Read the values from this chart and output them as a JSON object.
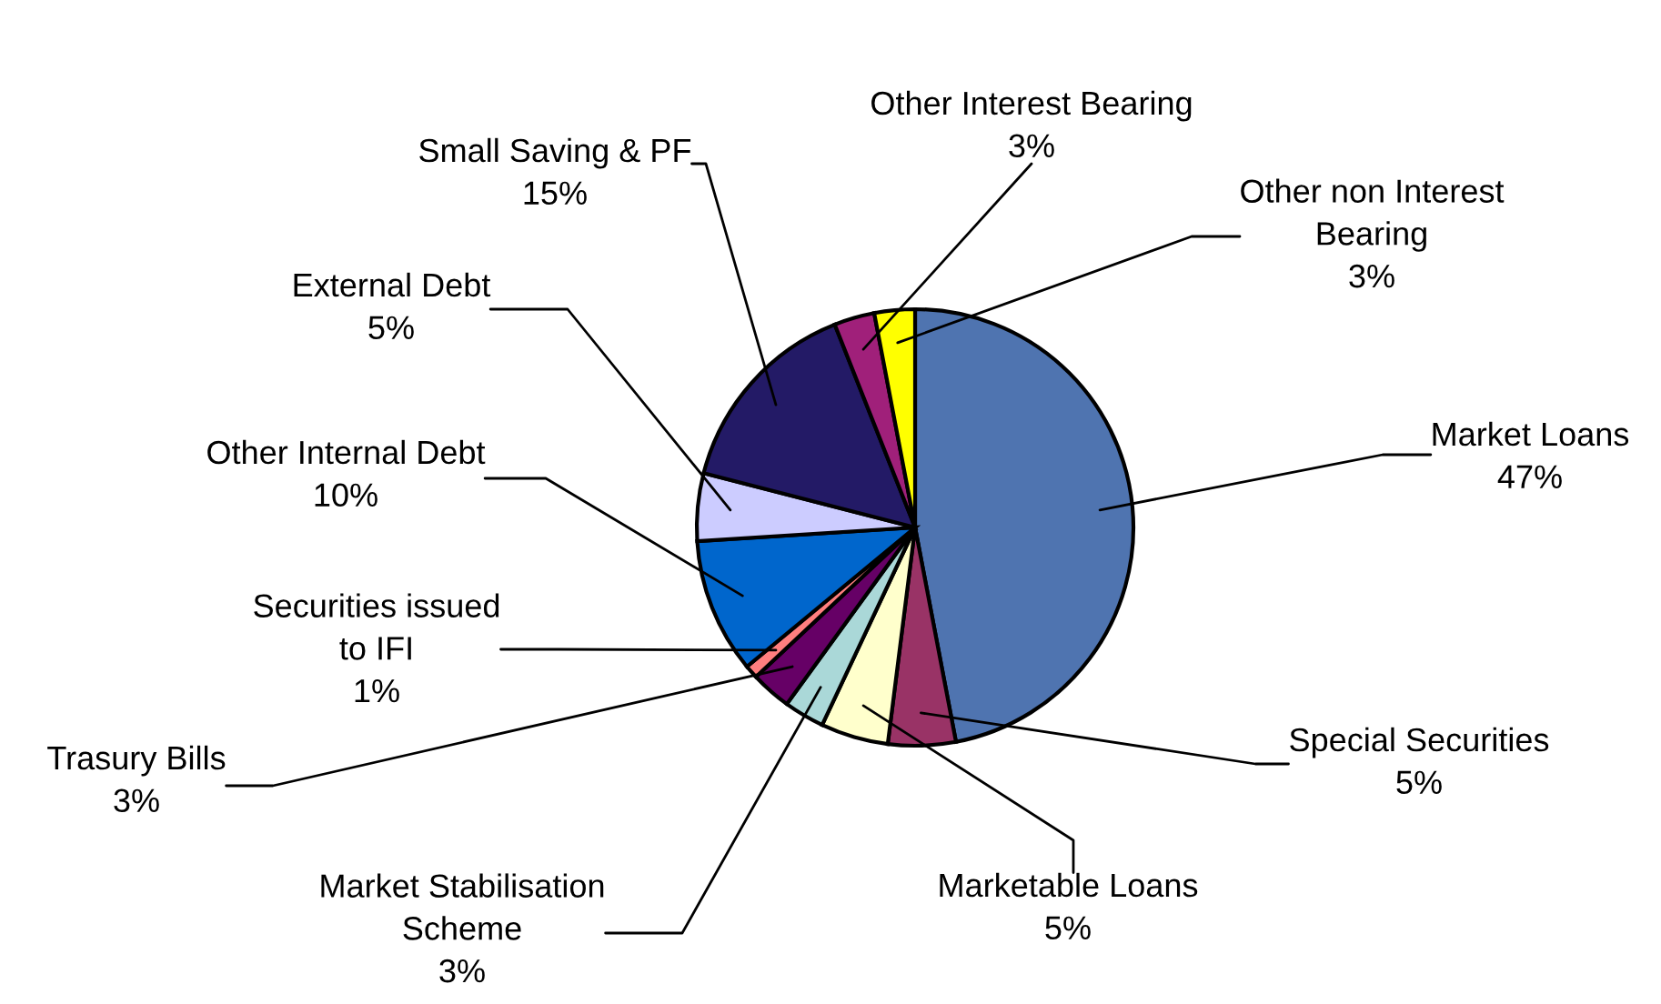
{
  "chart_data": {
    "type": "pie",
    "categories": [
      "Market Loans",
      "Special Securities",
      "Marketable Loans",
      "Market Stabilisation Scheme",
      "Trasury Bills",
      "Securities issued to IFI",
      "Other Internal Debt",
      "External Debt",
      "Small Saving & PF",
      "Other Interest Bearing",
      "Other non Interest Bearing"
    ],
    "values": [
      47,
      5,
      5,
      3,
      3,
      1,
      10,
      5,
      15,
      3,
      3
    ],
    "value_labels": [
      "47%",
      "5%",
      "5%",
      "3%",
      "3%",
      "1%",
      "10%",
      "5%",
      "15%",
      "3%",
      "3%"
    ],
    "colors": [
      "#4f74b0",
      "#993366",
      "#ffffcc",
      "#aad8d8",
      "#660066",
      "#ff7f7f",
      "#0066cc",
      "#ccccff",
      "#231a66",
      "#a0207a",
      "#ffff00"
    ]
  }
}
